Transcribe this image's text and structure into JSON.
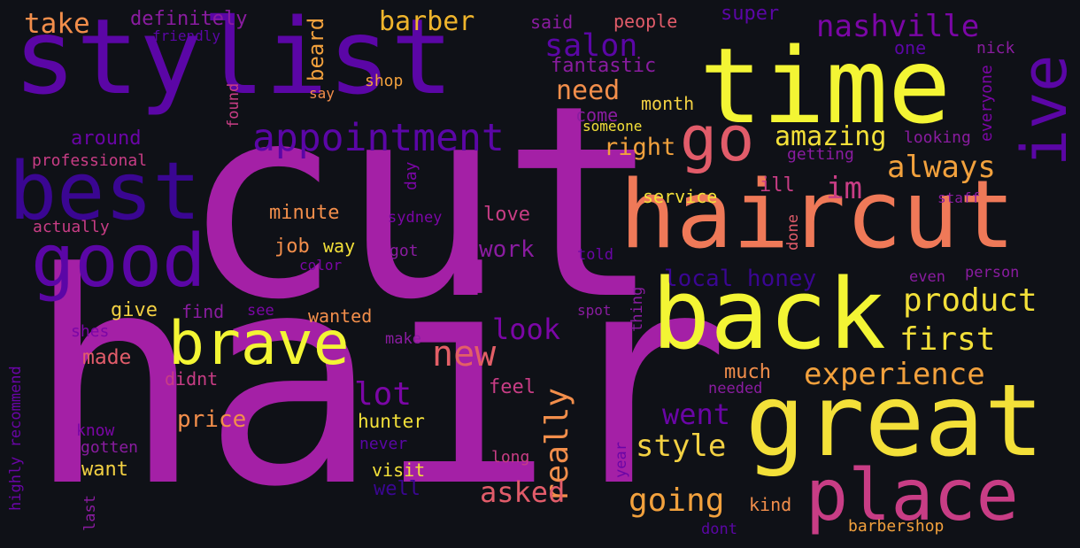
{
  "background_color": "#0f1117",
  "palette": [
    "#f3f534",
    "#ef7958",
    "#a420a6",
    "#5b06a6",
    "#3a0692",
    "#c83d85",
    "#e2a12f"
  ],
  "words": [
    {
      "text": "hair",
      "color": "#a420a6"
    },
    {
      "text": "cut",
      "color": "#a420a6"
    },
    {
      "text": "stylist",
      "color": "#5b06a6"
    },
    {
      "text": "time",
      "color": "#f3f534"
    },
    {
      "text": "haircut",
      "color": "#ef7958"
    },
    {
      "text": "great",
      "color": "#f3e039"
    },
    {
      "text": "back",
      "color": "#f3f534"
    },
    {
      "text": "best",
      "color": "#3a0692"
    },
    {
      "text": "good",
      "color": "#5b06a6"
    },
    {
      "text": "place",
      "color": "#c83d85"
    },
    {
      "text": "brave",
      "color": "#f3f534"
    },
    {
      "text": "go",
      "color": "#e25c6a"
    },
    {
      "text": "ive",
      "color": "#5b06a6"
    },
    {
      "text": "appointment",
      "color": "#5b06a6"
    },
    {
      "text": "take",
      "color": "#f28e4b"
    },
    {
      "text": "barber",
      "color": "#f0b52c"
    },
    {
      "text": "nashville",
      "color": "#7b06a6"
    },
    {
      "text": "salon",
      "color": "#5b06a6"
    },
    {
      "text": "new",
      "color": "#e35f67"
    },
    {
      "text": "really",
      "color": "#f28e4b"
    },
    {
      "text": "product",
      "color": "#f3e039"
    },
    {
      "text": "first",
      "color": "#f3e039"
    },
    {
      "text": "experience",
      "color": "#f2a13d"
    },
    {
      "text": "always",
      "color": "#f2a13d"
    },
    {
      "text": "amazing",
      "color": "#f3e039"
    },
    {
      "text": "im",
      "color": "#c83d85"
    },
    {
      "text": "lot",
      "color": "#7b06a6"
    },
    {
      "text": "went",
      "color": "#6a05a6"
    },
    {
      "text": "style",
      "color": "#f3d143"
    },
    {
      "text": "going",
      "color": "#f2a13d"
    },
    {
      "text": "asked",
      "color": "#e25c6a"
    },
    {
      "text": "look",
      "color": "#7b06a6"
    },
    {
      "text": "need",
      "color": "#f28e4b"
    },
    {
      "text": "right",
      "color": "#f2a13d"
    },
    {
      "text": "local honey",
      "color": "#3a0692"
    },
    {
      "text": "definitely",
      "color": "#8a1ca0"
    },
    {
      "text": "friendly",
      "color": "#5b06a6"
    },
    {
      "text": "said",
      "color": "#8a1ca0"
    },
    {
      "text": "people",
      "color": "#e25c6a"
    },
    {
      "text": "super",
      "color": "#5b06a6"
    },
    {
      "text": "one",
      "color": "#5b06a6"
    },
    {
      "text": "nick",
      "color": "#8a1ca0"
    },
    {
      "text": "fantastic",
      "color": "#8a1ca0"
    },
    {
      "text": "beard",
      "color": "#f2a13d"
    },
    {
      "text": "shop",
      "color": "#f2a13d"
    },
    {
      "text": "say",
      "color": "#f28e4b"
    },
    {
      "text": "found",
      "color": "#c83d85"
    },
    {
      "text": "around",
      "color": "#6a05a6"
    },
    {
      "text": "come",
      "color": "#8a1ca0"
    },
    {
      "text": "month",
      "color": "#f3d143"
    },
    {
      "text": "someone",
      "color": "#f3e039"
    },
    {
      "text": "looking",
      "color": "#8a1ca0"
    },
    {
      "text": "everyone",
      "color": "#7b06a6"
    },
    {
      "text": "getting",
      "color": "#8a1ca0"
    },
    {
      "text": "professional",
      "color": "#c83d85"
    },
    {
      "text": "day",
      "color": "#7b06a6"
    },
    {
      "text": "service",
      "color": "#f3e039"
    },
    {
      "text": "ill",
      "color": "#c83d85"
    },
    {
      "text": "staff",
      "color": "#8a1ca0"
    },
    {
      "text": "minute",
      "color": "#f28e4b"
    },
    {
      "text": "sydney",
      "color": "#7b06a6"
    },
    {
      "text": "love",
      "color": "#c83d85"
    },
    {
      "text": "done",
      "color": "#e25c6a"
    },
    {
      "text": "actually",
      "color": "#c83d85"
    },
    {
      "text": "job",
      "color": "#f28e4b"
    },
    {
      "text": "way",
      "color": "#f3e039"
    },
    {
      "text": "got",
      "color": "#8a1ca0"
    },
    {
      "text": "work",
      "color": "#8a1ca0"
    },
    {
      "text": "told",
      "color": "#6a05a6"
    },
    {
      "text": "color",
      "color": "#7b06a6"
    },
    {
      "text": "even",
      "color": "#8a1ca0"
    },
    {
      "text": "person",
      "color": "#8a1ca0"
    },
    {
      "text": "give",
      "color": "#f3d143"
    },
    {
      "text": "find",
      "color": "#8a1ca0"
    },
    {
      "text": "see",
      "color": "#7b06a6"
    },
    {
      "text": "wanted",
      "color": "#f28e4b"
    },
    {
      "text": "spot",
      "color": "#8a1ca0"
    },
    {
      "text": "thing",
      "color": "#8a1ca0"
    },
    {
      "text": "shes",
      "color": "#7b06a6"
    },
    {
      "text": "make",
      "color": "#8a1ca0"
    },
    {
      "text": "made",
      "color": "#e25c6a"
    },
    {
      "text": "highly recommend",
      "color": "#6a05a6"
    },
    {
      "text": "much",
      "color": "#f28e4b"
    },
    {
      "text": "needed",
      "color": "#8a1ca0"
    },
    {
      "text": "didnt",
      "color": "#c83d85"
    },
    {
      "text": "feel",
      "color": "#c83d85"
    },
    {
      "text": "price",
      "color": "#f28e4b"
    },
    {
      "text": "hunter",
      "color": "#f3e039"
    },
    {
      "text": "know",
      "color": "#7b06a6"
    },
    {
      "text": "never",
      "color": "#5b06a6"
    },
    {
      "text": "gotten",
      "color": "#8a1ca0"
    },
    {
      "text": "year",
      "color": "#6a05a6"
    },
    {
      "text": "want",
      "color": "#f3d143"
    },
    {
      "text": "visit",
      "color": "#f3e039"
    },
    {
      "text": "long",
      "color": "#c83d85"
    },
    {
      "text": "well",
      "color": "#3a0692"
    },
    {
      "text": "kind",
      "color": "#f28e4b"
    },
    {
      "text": "last",
      "color": "#8a1ca0"
    },
    {
      "text": "dont",
      "color": "#5b06a6"
    },
    {
      "text": "barbershop",
      "color": "#f2a13d"
    }
  ]
}
